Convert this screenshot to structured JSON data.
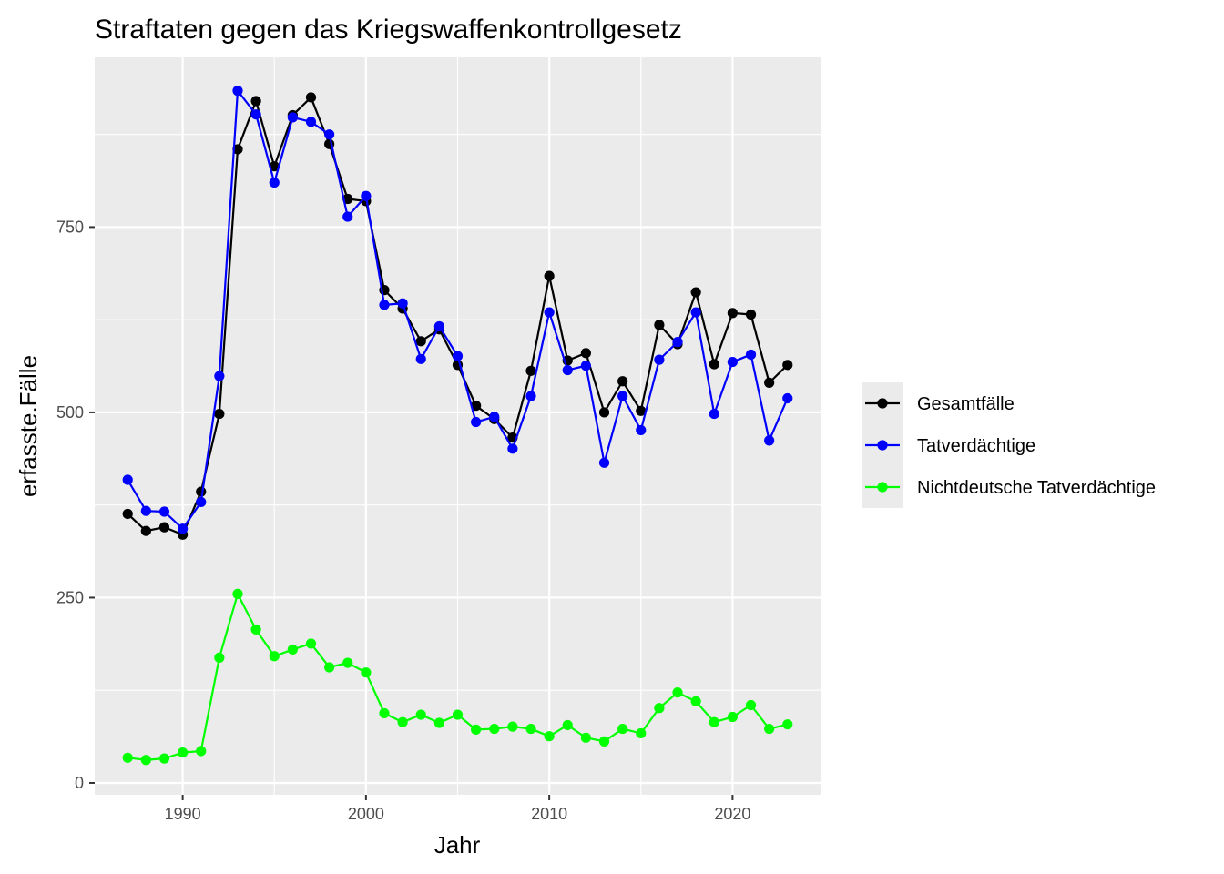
{
  "chart_data": {
    "type": "line",
    "title": "Straftaten gegen das Kriegswaffenkontrollgesetz",
    "xlabel": "Jahr",
    "ylabel": "erfasste.Fälle",
    "xlim": [
      1985.2,
      2024.8
    ],
    "ylim": [
      -16,
      979
    ],
    "x_ticks": [
      1990,
      2000,
      2010,
      2020
    ],
    "y_ticks": [
      0,
      250,
      500,
      750
    ],
    "x_tick_labels": [
      "1990",
      "2000",
      "2010",
      "2020"
    ],
    "y_tick_labels": [
      "0",
      "250",
      "500",
      "750"
    ],
    "grid": true,
    "legend_position": "right",
    "x": [
      1987,
      1988,
      1989,
      1990,
      1991,
      1992,
      1993,
      1994,
      1995,
      1996,
      1997,
      1998,
      1999,
      2000,
      2001,
      2002,
      2003,
      2004,
      2005,
      2006,
      2007,
      2008,
      2009,
      2010,
      2011,
      2012,
      2013,
      2014,
      2015,
      2016,
      2017,
      2018,
      2019,
      2020,
      2021,
      2022,
      2023
    ],
    "series": [
      {
        "name": "Gesamtfälle",
        "color": "#000000",
        "values": [
          363,
          340,
          345,
          335,
          393,
          498,
          855,
          920,
          832,
          901,
          925,
          862,
          788,
          785,
          665,
          640,
          596,
          612,
          564,
          509,
          491,
          466,
          556,
          684,
          570,
          580,
          500,
          542,
          502,
          618,
          592,
          662,
          565,
          634,
          632,
          540,
          564
        ]
      },
      {
        "name": "Tatverdächtige",
        "color": "#0000ff",
        "values": [
          409,
          367,
          366,
          343,
          379,
          549,
          934,
          902,
          810,
          898,
          892,
          875,
          764,
          792,
          645,
          647,
          572,
          616,
          576,
          487,
          494,
          451,
          522,
          635,
          557,
          563,
          432,
          522,
          476,
          571,
          595,
          635,
          498,
          568,
          578,
          462,
          519
        ]
      },
      {
        "name": "Nichtdeutsche Tatverdächtige",
        "color": "#00ff00",
        "values": [
          34,
          31,
          33,
          41,
          43,
          169,
          255,
          207,
          171,
          180,
          188,
          156,
          162,
          149,
          94,
          82,
          92,
          81,
          92,
          72,
          73,
          76,
          73,
          63,
          78,
          61,
          56,
          73,
          67,
          101,
          122,
          110,
          82,
          89,
          105,
          73,
          79
        ]
      }
    ]
  }
}
